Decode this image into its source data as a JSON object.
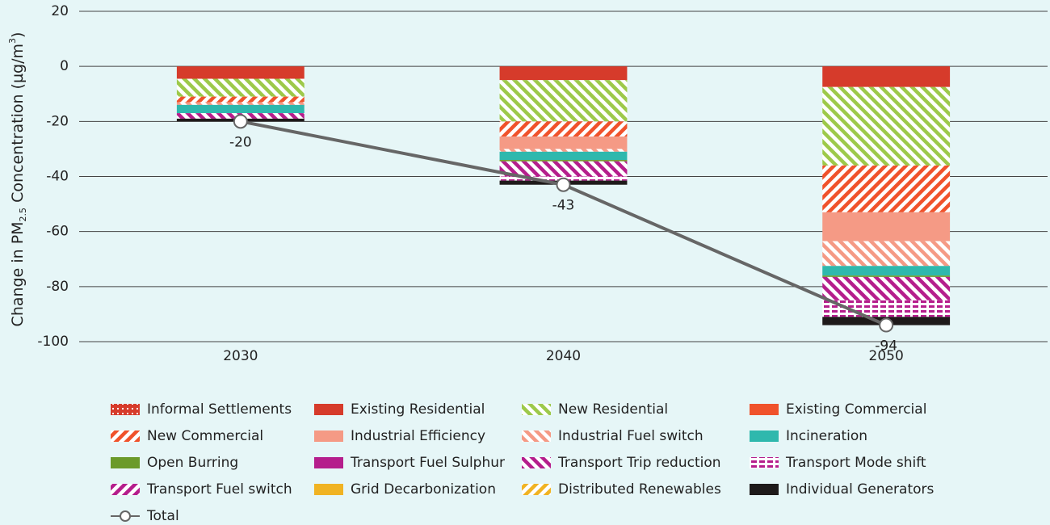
{
  "chart_data": {
    "type": "bar",
    "stacked": true,
    "y_label_parts": [
      "Change in PM",
      "2.5",
      " Concentration (µg/m",
      "3",
      ")"
    ],
    "categories": [
      "2030",
      "2040",
      "2050"
    ],
    "ylim": [
      -100,
      20
    ],
    "yticks": [
      20,
      0,
      -20,
      -40,
      -60,
      -80,
      -100
    ],
    "grid": true,
    "legend": "bottom",
    "series": [
      {
        "name": "Informal Settlements",
        "color": "#d63b2b",
        "pattern": "dots",
        "values": [
          0,
          0,
          0
        ]
      },
      {
        "name": "Existing Residential",
        "color": "#d63b2b",
        "pattern": "solid",
        "values": [
          -4.5,
          -5,
          -7.5
        ]
      },
      {
        "name": "New Residential",
        "color": "#9dc94a",
        "pattern": "diag-back",
        "values": [
          -6.5,
          -15,
          -28.5
        ]
      },
      {
        "name": "Existing Commercial",
        "color": "#f0522b",
        "pattern": "solid",
        "values": [
          0,
          0,
          0
        ]
      },
      {
        "name": "New Commercial",
        "color": "#f0522b",
        "pattern": "diag",
        "values": [
          -2,
          -5.5,
          -17
        ]
      },
      {
        "name": "Industrial Efficiency",
        "color": "#f59a85",
        "pattern": "solid",
        "values": [
          0,
          -4.5,
          -10.5
        ]
      },
      {
        "name": "Industrial Fuel switch",
        "color": "#f59a85",
        "pattern": "diag-back",
        "values": [
          -1,
          -1,
          -9
        ]
      },
      {
        "name": "Incineration",
        "color": "#2fb8ad",
        "pattern": "solid",
        "values": [
          -3,
          -3,
          -3.5
        ]
      },
      {
        "name": "Open Burring",
        "color": "#6b9a2a",
        "pattern": "solid",
        "values": [
          0,
          -0.5,
          -0.5
        ]
      },
      {
        "name": "Transport Fuel Sulphur",
        "color": "#b51e8c",
        "pattern": "solid",
        "values": [
          0,
          0,
          0
        ]
      },
      {
        "name": "Transport Trip reduction",
        "color": "#b51e8c",
        "pattern": "diag-back",
        "values": [
          -2,
          -5.5,
          -8.5
        ]
      },
      {
        "name": "Transport Mode shift",
        "color": "#b51e8c",
        "pattern": "dash",
        "values": [
          0,
          -1.5,
          -6
        ]
      },
      {
        "name": "Transport Fuel switch",
        "color": "#b51e8c",
        "pattern": "diag",
        "values": [
          0,
          0,
          0
        ]
      },
      {
        "name": "Grid Decarbonization",
        "color": "#f0b323",
        "pattern": "solid",
        "values": [
          0,
          0,
          0
        ]
      },
      {
        "name": "Distributed Renewables",
        "color": "#f0b323",
        "pattern": "diag",
        "values": [
          0,
          0,
          0
        ]
      },
      {
        "name": "Individual Generators",
        "color": "#1e1a1a",
        "pattern": "solid",
        "values": [
          -1,
          -1.5,
          -3
        ]
      },
      {
        "name": "Total",
        "color": "#666666",
        "type": "line",
        "values": [
          -20,
          -43,
          -94
        ]
      }
    ]
  }
}
